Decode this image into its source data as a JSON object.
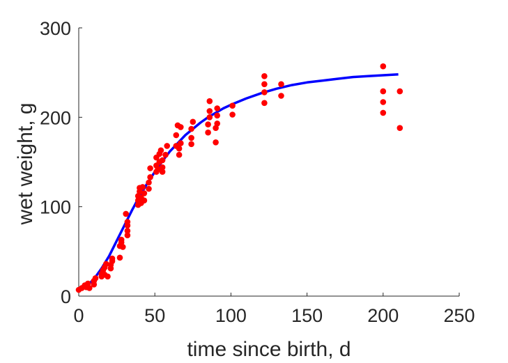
{
  "chart_data": {
    "type": "scatter",
    "xlabel": "time since birth, d",
    "ylabel": "wet weight, g",
    "xlim": [
      0,
      250
    ],
    "ylim": [
      0,
      300
    ],
    "xticks": [
      "0",
      "50",
      "100",
      "150",
      "200",
      "250"
    ],
    "yticks": [
      "0",
      "100",
      "200",
      "300"
    ],
    "grid": false,
    "legend": "none",
    "series": [
      {
        "kind": "scatter",
        "color": "#ff0000",
        "points": [
          [
            0,
            7
          ],
          [
            2,
            9
          ],
          [
            4,
            12
          ],
          [
            5,
            10
          ],
          [
            6,
            14
          ],
          [
            7,
            9
          ],
          [
            10,
            13
          ],
          [
            10,
            17
          ],
          [
            11,
            20
          ],
          [
            15,
            22
          ],
          [
            15,
            25
          ],
          [
            16,
            29
          ],
          [
            17,
            32
          ],
          [
            17,
            24
          ],
          [
            18,
            36
          ],
          [
            19,
            22
          ],
          [
            21,
            31
          ],
          [
            21,
            35
          ],
          [
            22,
            39
          ],
          [
            22,
            42
          ],
          [
            27,
            43
          ],
          [
            27,
            56
          ],
          [
            28,
            60
          ],
          [
            28,
            63
          ],
          [
            29,
            55
          ],
          [
            31,
            92
          ],
          [
            32,
            68
          ],
          [
            32,
            73
          ],
          [
            32,
            79
          ],
          [
            32,
            83
          ],
          [
            39,
            102
          ],
          [
            39,
            107
          ],
          [
            39,
            112
          ],
          [
            40,
            117
          ],
          [
            40,
            121
          ],
          [
            41,
            104
          ],
          [
            41,
            110
          ],
          [
            42,
            122
          ],
          [
            43,
            107
          ],
          [
            43,
            115
          ],
          [
            46,
            120
          ],
          [
            46,
            127
          ],
          [
            47,
            133
          ],
          [
            47,
            143
          ],
          [
            51,
            139
          ],
          [
            51,
            146
          ],
          [
            51,
            155
          ],
          [
            52,
            142
          ],
          [
            53,
            150
          ],
          [
            53,
            159
          ],
          [
            54,
            163
          ],
          [
            55,
            139
          ],
          [
            55,
            144
          ],
          [
            55,
            152
          ],
          [
            57,
            158
          ],
          [
            58,
            168
          ],
          [
            64,
            168
          ],
          [
            64,
            180
          ],
          [
            65,
            191
          ],
          [
            66,
            158
          ],
          [
            66,
            165
          ],
          [
            67,
            171
          ],
          [
            67,
            189
          ],
          [
            74,
            170
          ],
          [
            74,
            177
          ],
          [
            74,
            187
          ],
          [
            75,
            195
          ],
          [
            85,
            183
          ],
          [
            85,
            192
          ],
          [
            86,
            200
          ],
          [
            86,
            207
          ],
          [
            86,
            218
          ],
          [
            90,
            172
          ],
          [
            90,
            188
          ],
          [
            91,
            193
          ],
          [
            91,
            202
          ],
          [
            91,
            210
          ],
          [
            101,
            203
          ],
          [
            101,
            213
          ],
          [
            122,
            216
          ],
          [
            122,
            228
          ],
          [
            122,
            237
          ],
          [
            122,
            246
          ],
          [
            133,
            224
          ],
          [
            133,
            237
          ],
          [
            200,
            205
          ],
          [
            200,
            217
          ],
          [
            200,
            229
          ],
          [
            200,
            257
          ],
          [
            211,
            188
          ],
          [
            211,
            229
          ]
        ]
      },
      {
        "kind": "line",
        "color": "#0000ff",
        "points": [
          [
            0,
            6
          ],
          [
            5,
            11
          ],
          [
            10,
            19
          ],
          [
            15,
            31
          ],
          [
            20,
            45
          ],
          [
            25,
            62
          ],
          [
            30,
            79
          ],
          [
            35,
            96
          ],
          [
            40,
            112
          ],
          [
            45,
            126
          ],
          [
            50,
            139
          ],
          [
            55,
            151
          ],
          [
            60,
            162
          ],
          [
            65,
            171
          ],
          [
            70,
            180
          ],
          [
            75,
            187
          ],
          [
            80,
            194
          ],
          [
            85,
            200
          ],
          [
            90,
            205
          ],
          [
            95,
            210
          ],
          [
            100,
            214
          ],
          [
            110,
            221
          ],
          [
            120,
            227
          ],
          [
            130,
            232
          ],
          [
            140,
            236
          ],
          [
            150,
            239
          ],
          [
            160,
            241
          ],
          [
            170,
            243
          ],
          [
            180,
            245
          ],
          [
            190,
            246
          ],
          [
            200,
            247
          ],
          [
            210,
            248
          ]
        ]
      }
    ]
  }
}
